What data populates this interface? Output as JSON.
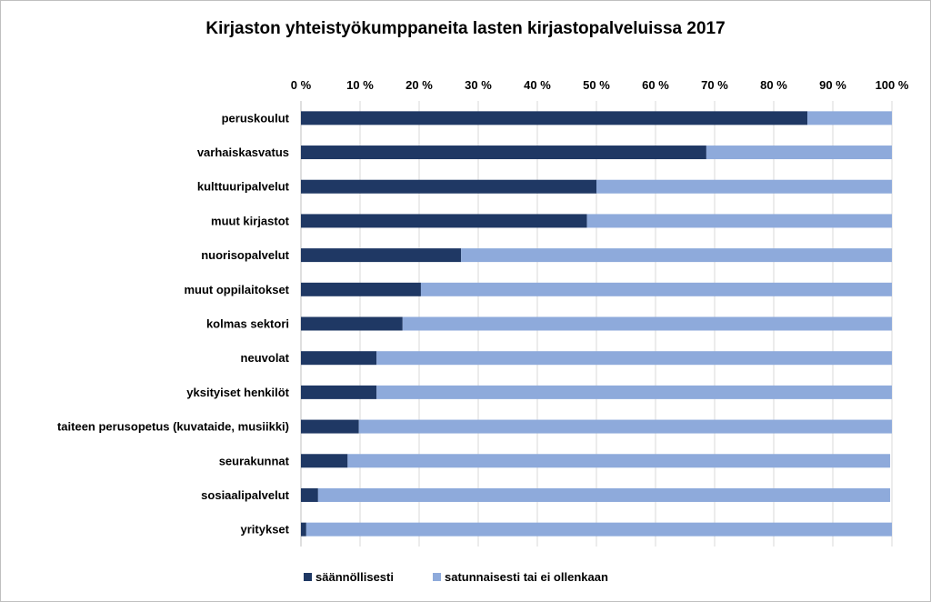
{
  "chart_data": {
    "type": "bar",
    "orientation": "horizontal",
    "stacked": true,
    "title": "Kirjaston yhteistyökumppaneita  lasten kirjastopalveluissa 2017",
    "x_axis": {
      "position": "top",
      "range": [
        0,
        100
      ],
      "ticks": [
        0,
        10,
        20,
        30,
        40,
        50,
        60,
        70,
        80,
        90,
        100
      ],
      "tick_labels": [
        "0 %",
        "10 %",
        "20 %",
        "30 %",
        "40 %",
        "50 %",
        "60 %",
        "70 %",
        "80 %",
        "90 %",
        "100 %"
      ],
      "grid": true
    },
    "categories": [
      "peruskoulut",
      "varhaiskasvatus",
      "kulttuuripalvelut",
      "muut kirjastot",
      "nuorisopalvelut",
      "muut oppilaitokset",
      "kolmas sektori",
      "neuvolat",
      "yksityiset henkilöt",
      "taiteen perusopetus (kuvataide, musiikki)",
      "seurakunnat",
      "sosiaalipalvelut",
      "yritykset"
    ],
    "series": [
      {
        "name": "säännöllisesti",
        "color": "#1f3864",
        "values": [
          85.7,
          68.6,
          50.0,
          48.4,
          27.1,
          20.3,
          17.2,
          12.8,
          12.8,
          9.8,
          7.9,
          2.9,
          0.9
        ]
      },
      {
        "name": "satunnaisesti tai ei ollenkaan",
        "color": "#8eaadb",
        "values": [
          14.3,
          31.4,
          50.0,
          51.6,
          72.9,
          79.7,
          82.8,
          87.2,
          87.2,
          90.2,
          91.8,
          96.8,
          99.1
        ]
      }
    ],
    "legend": "bottom"
  }
}
